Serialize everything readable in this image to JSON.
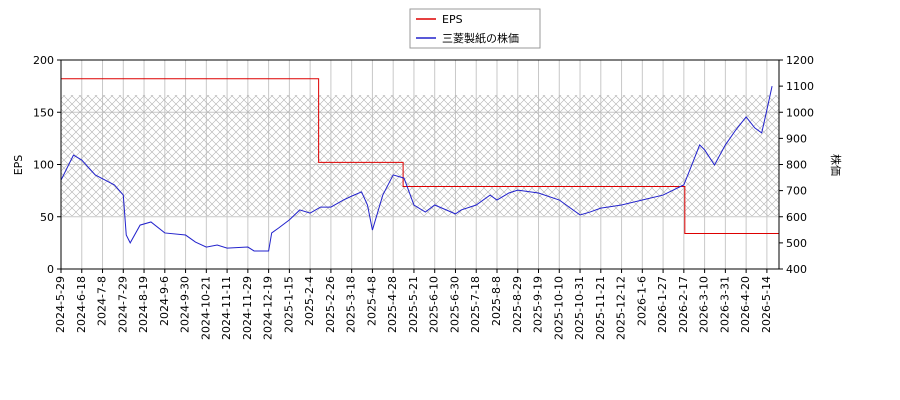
{
  "chart_data": {
    "type": "line",
    "y_label": "EPS",
    "y2_label": "株価",
    "xlim": [
      "2024-5-29",
      "2026-5-28"
    ],
    "xticks": [
      "2024-5-29",
      "2024-6-18",
      "2024-7-8",
      "2024-7-29",
      "2024-8-19",
      "2024-9-6",
      "2024-9-30",
      "2024-10-21",
      "2024-11-11",
      "2024-11-29",
      "2024-12-19",
      "2025-1-15",
      "2025-2-4",
      "2025-2-26",
      "2025-3-18",
      "2025-4-8",
      "2025-4-28",
      "2025-5-21",
      "2025-6-10",
      "2025-6-30",
      "2025-7-18",
      "2025-8-8",
      "2025-8-29",
      "2025-9-19",
      "2025-10-10",
      "2025-10-31",
      "2025-11-21",
      "2025-12-12",
      "2026-1-6",
      "2026-1-27",
      "2026-2-17",
      "2026-3-10",
      "2026-3-31",
      "2026-4-20",
      "2026-5-14"
    ],
    "ylim": [
      0,
      200
    ],
    "yticks": [
      0,
      50,
      100,
      150,
      200
    ],
    "y2lim": [
      400,
      1200
    ],
    "y2ticks": [
      400,
      500,
      600,
      700,
      800,
      900,
      1000,
      1100,
      1200
    ],
    "grid": true,
    "legend": "top",
    "series": [
      {
        "name": "EPS",
        "color": "#dd0000",
        "step": true,
        "x": [
          "2024-5-29",
          "2025-2-13",
          "2025-5-9",
          "2026-2-18",
          "2026-5-28"
        ],
        "values": [
          182,
          102,
          79,
          34,
          34
        ]
      },
      {
        "name": "三菱製紙の株価",
        "color": "#2222cc",
        "axis": "y2",
        "x": [
          "2024-5-29",
          "2024-6-10",
          "2024-6-18",
          "2024-7-1",
          "2024-7-20",
          "2024-7-29",
          "2024-8-1",
          "2024-8-5",
          "2024-8-15",
          "2024-8-25",
          "2024-9-6",
          "2024-9-30",
          "2024-10-10",
          "2024-10-21",
          "2024-11-1",
          "2024-11-11",
          "2024-11-29",
          "2024-12-5",
          "2024-12-19",
          "2024-12-23",
          "2025-1-1",
          "2025-1-15",
          "2025-1-25",
          "2025-2-4",
          "2025-2-15",
          "2025-2-26",
          "2025-3-10",
          "2025-3-18",
          "2025-3-28",
          "2025-4-3",
          "2025-4-8",
          "2025-4-18",
          "2025-4-28",
          "2025-5-10",
          "2025-5-21",
          "2025-6-1",
          "2025-6-10",
          "2025-6-30",
          "2025-7-5",
          "2025-7-18",
          "2025-8-1",
          "2025-8-8",
          "2025-8-20",
          "2025-8-29",
          "2025-9-19",
          "2025-10-10",
          "2025-10-31",
          "2025-11-10",
          "2025-11-21",
          "2025-12-12",
          "2026-1-6",
          "2026-1-27",
          "2026-2-17",
          "2026-2-25",
          "2026-3-5",
          "2026-3-10",
          "2026-3-20",
          "2026-3-31",
          "2026-4-10",
          "2026-4-20",
          "2026-4-30",
          "2026-5-8",
          "2026-5-14",
          "2026-5-20"
        ],
        "values": [
          740,
          836,
          817,
          760,
          722,
          683,
          530,
          500,
          568,
          580,
          538,
          530,
          503,
          484,
          492,
          480,
          484,
          469,
          469,
          538,
          557,
          588,
          626,
          614,
          637,
          637,
          664,
          679,
          695,
          645,
          549,
          683,
          760,
          748,
          645,
          618,
          645,
          611,
          626,
          645,
          683,
          664,
          691,
          702,
          691,
          664,
          607,
          618,
          633,
          645,
          664,
          683,
          722,
          798,
          875,
          856,
          798,
          875,
          932,
          982,
          940,
          921,
          1009,
          1100
        ]
      }
    ]
  }
}
